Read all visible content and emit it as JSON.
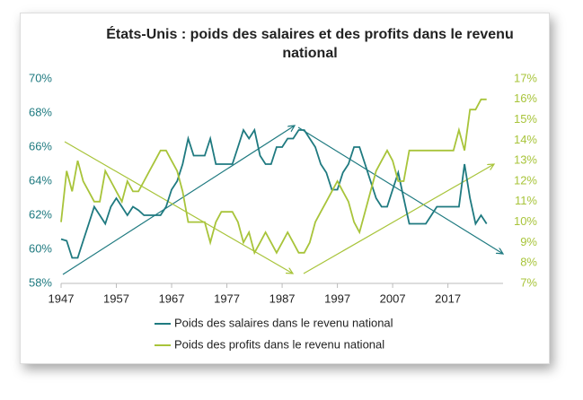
{
  "chart_data": {
    "type": "line",
    "title": "États-Unis : poids des salaires et des profits dans le revenu national",
    "x": [
      1947,
      1948,
      1949,
      1950,
      1951,
      1952,
      1953,
      1954,
      1955,
      1956,
      1957,
      1958,
      1959,
      1960,
      1961,
      1962,
      1963,
      1964,
      1965,
      1966,
      1967,
      1968,
      1969,
      1970,
      1971,
      1972,
      1973,
      1974,
      1975,
      1976,
      1977,
      1978,
      1979,
      1980,
      1981,
      1982,
      1983,
      1984,
      1985,
      1986,
      1987,
      1988,
      1989,
      1990,
      1991,
      1992,
      1993,
      1994,
      1995,
      1996,
      1997,
      1998,
      1999,
      2000,
      2001,
      2002,
      2003,
      2004,
      2005,
      2006,
      2007,
      2008,
      2009,
      2010,
      2011,
      2012,
      2013,
      2014,
      2015,
      2016,
      2017,
      2018,
      2019,
      2020,
      2021,
      2022,
      2023,
      2024
    ],
    "xlim": [
      1947,
      2026
    ],
    "xticks": [
      1947,
      1957,
      1967,
      1977,
      1987,
      1997,
      2007,
      2017
    ],
    "ylim": [
      58,
      70
    ],
    "yticks": [
      {
        "value": 58,
        "label": "58%"
      },
      {
        "value": 60,
        "label": "60%"
      },
      {
        "value": 62,
        "label": "62%"
      },
      {
        "value": 64,
        "label": "64%"
      },
      {
        "value": 66,
        "label": "66%"
      },
      {
        "value": 68,
        "label": "68%"
      },
      {
        "value": 70,
        "label": "70%"
      }
    ],
    "y2lim": [
      7,
      17
    ],
    "y2ticks": [
      {
        "value": 7,
        "label": "7%"
      },
      {
        "value": 8,
        "label": "8%"
      },
      {
        "value": 9,
        "label": "9%"
      },
      {
        "value": 10,
        "label": "10%"
      },
      {
        "value": 11,
        "label": "11%"
      },
      {
        "value": 12,
        "label": "12%"
      },
      {
        "value": 13,
        "label": "13%"
      },
      {
        "value": 14,
        "label": "14%"
      },
      {
        "value": 15,
        "label": "15%"
      },
      {
        "value": 16,
        "label": "16%"
      },
      {
        "value": 17,
        "label": "17%"
      }
    ],
    "grid": false,
    "series": [
      {
        "name": "Poids des salaires dans le revenu national",
        "color": "#1f7a80",
        "axis": "y",
        "values": [
          60.6,
          60.5,
          59.5,
          59.5,
          60.5,
          61.5,
          62.5,
          62.0,
          61.5,
          62.5,
          63.0,
          62.5,
          62.0,
          62.5,
          62.3,
          62.0,
          62.0,
          62.0,
          62.0,
          62.5,
          63.5,
          64.0,
          65.0,
          66.5,
          65.5,
          65.5,
          65.5,
          66.5,
          65.0,
          65.0,
          65.0,
          65.0,
          66.0,
          67.0,
          66.5,
          67.0,
          65.5,
          65.0,
          65.0,
          66.0,
          66.0,
          66.5,
          66.5,
          67.0,
          67.0,
          66.5,
          66.0,
          65.0,
          64.5,
          63.5,
          63.5,
          64.5,
          65.0,
          66.0,
          66.0,
          65.0,
          64.0,
          63.0,
          62.5,
          62.5,
          63.5,
          64.5,
          63.0,
          61.5,
          61.5,
          61.5,
          61.5,
          62.0,
          62.5,
          62.5,
          62.5,
          62.5,
          62.5,
          65.0,
          63.0,
          61.5,
          62.0,
          61.5
        ]
      },
      {
        "name": "Poids des profits dans le revenu national",
        "color": "#a8c43a",
        "axis": "y2",
        "values": [
          10.0,
          12.5,
          11.5,
          13.0,
          12.0,
          11.5,
          11.0,
          11.0,
          12.5,
          12.0,
          11.5,
          11.0,
          12.0,
          11.5,
          11.5,
          12.0,
          12.5,
          13.0,
          13.5,
          13.5,
          13.0,
          12.5,
          11.5,
          10.0,
          10.0,
          10.0,
          10.0,
          9.0,
          10.0,
          10.5,
          10.5,
          10.5,
          10.0,
          9.0,
          9.5,
          8.5,
          9.0,
          9.5,
          9.0,
          8.5,
          9.0,
          9.5,
          9.0,
          8.5,
          8.5,
          9.0,
          10.0,
          10.5,
          11.0,
          11.5,
          12.0,
          11.5,
          11.0,
          10.0,
          9.5,
          10.5,
          11.5,
          12.5,
          13.0,
          13.5,
          13.0,
          12.0,
          12.0,
          13.5,
          13.5,
          13.5,
          13.5,
          13.5,
          13.5,
          13.5,
          13.5,
          13.5,
          14.5,
          13.5,
          15.5,
          15.5,
          16.0,
          16.0
        ]
      }
    ],
    "legend": "bottom"
  }
}
